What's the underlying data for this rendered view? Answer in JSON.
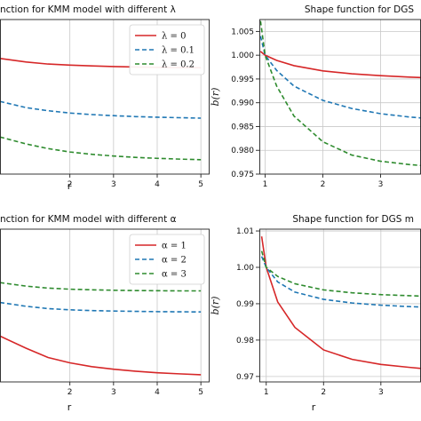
{
  "colors": {
    "red": "#d62728",
    "blue": "#1f77b4",
    "green": "#2e8b2e"
  },
  "chart_data": [
    {
      "type": "line",
      "title": "nction for KMM model with different λ",
      "xlabel": "r",
      "ylabel": "",
      "xlim": [
        0.4,
        5.2
      ],
      "ylim": [
        0,
        1
      ],
      "xticks": [
        2,
        3,
        4,
        5
      ],
      "yticks": [],
      "grid": true,
      "legend": "top-right",
      "series": [
        {
          "name": "λ = 0",
          "color": "red",
          "dash": "",
          "x": [
            0.4,
            1,
            1.5,
            2,
            2.5,
            3,
            3.5,
            4,
            4.5,
            5
          ],
          "y": [
            0.748,
            0.725,
            0.712,
            0.705,
            0.7,
            0.696,
            0.693,
            0.691,
            0.689,
            0.688
          ]
        },
        {
          "name": "λ = 0.1",
          "color": "blue",
          "dash": "5,3",
          "x": [
            0.4,
            1,
            1.5,
            2,
            2.5,
            3,
            3.5,
            4,
            4.5,
            5
          ],
          "y": [
            0.47,
            0.43,
            0.41,
            0.395,
            0.385,
            0.378,
            0.372,
            0.368,
            0.365,
            0.362
          ]
        },
        {
          "name": "λ = 0.2",
          "color": "green",
          "dash": "5,3",
          "x": [
            0.4,
            1,
            1.5,
            2,
            2.5,
            3,
            3.5,
            4,
            4.5,
            5
          ],
          "y": [
            0.24,
            0.195,
            0.165,
            0.143,
            0.128,
            0.117,
            0.108,
            0.102,
            0.097,
            0.093
          ]
        }
      ]
    },
    {
      "type": "line",
      "title": "Shape function for DGS",
      "xlabel": "",
      "ylabel": "b(r)",
      "xlim": [
        0.9,
        3.7
      ],
      "ylim": [
        0.975,
        1.0075
      ],
      "xticks": [
        1,
        2,
        3
      ],
      "yticks": [
        0.975,
        0.98,
        0.985,
        0.99,
        0.995,
        1.0,
        1.005
      ],
      "ytick_labels": [
        "0.975",
        "0.980",
        "0.985",
        "0.990",
        "0.995",
        "1.000",
        "1.005"
      ],
      "grid": true,
      "legend": "none",
      "series": [
        {
          "name": "",
          "color": "red",
          "dash": "",
          "x": [
            0.92,
            1,
            1.2,
            1.5,
            2,
            2.5,
            3,
            3.5,
            3.7
          ],
          "y": [
            1.0008,
            1.0,
            0.9989,
            0.9978,
            0.9967,
            0.9961,
            0.9957,
            0.9954,
            0.9953
          ]
        },
        {
          "name": "",
          "color": "blue",
          "dash": "5,3",
          "x": [
            0.92,
            1,
            1.2,
            1.5,
            2,
            2.5,
            3,
            3.5,
            3.7
          ],
          "y": [
            1.004,
            1.0,
            0.9968,
            0.9935,
            0.9905,
            0.9888,
            0.9877,
            0.987,
            0.9868
          ]
        },
        {
          "name": "",
          "color": "green",
          "dash": "5,3",
          "x": [
            0.92,
            1,
            1.2,
            1.5,
            2,
            2.5,
            3,
            3.5,
            3.7
          ],
          "y": [
            1.0072,
            1.0,
            0.9935,
            0.9872,
            0.9818,
            0.979,
            0.9777,
            0.977,
            0.9768
          ]
        }
      ]
    },
    {
      "type": "line",
      "title": "nction for KMM model with different α",
      "xlabel": "r",
      "ylabel": "",
      "xlim": [
        0.4,
        5.2
      ],
      "ylim": [
        0,
        1
      ],
      "xticks": [
        2,
        3,
        4,
        5
      ],
      "yticks": [],
      "grid": true,
      "legend": "top-right",
      "series": [
        {
          "name": "α = 1",
          "color": "red",
          "dash": "",
          "x": [
            0.4,
            1,
            1.5,
            2,
            2.5,
            3,
            3.5,
            4,
            4.5,
            5
          ],
          "y": [
            0.3,
            0.22,
            0.16,
            0.125,
            0.1,
            0.083,
            0.07,
            0.06,
            0.053,
            0.047
          ]
        },
        {
          "name": "α = 2",
          "color": "blue",
          "dash": "5,3",
          "x": [
            0.4,
            1,
            1.5,
            2,
            2.5,
            3,
            3.5,
            4,
            4.5,
            5
          ],
          "y": [
            0.52,
            0.495,
            0.48,
            0.472,
            0.467,
            0.464,
            0.462,
            0.46,
            0.459,
            0.458
          ]
        },
        {
          "name": "α = 3",
          "color": "green",
          "dash": "5,3",
          "x": [
            0.4,
            1,
            1.5,
            2,
            2.5,
            3,
            3.5,
            4,
            4.5,
            5
          ],
          "y": [
            0.65,
            0.627,
            0.614,
            0.607,
            0.603,
            0.6,
            0.598,
            0.597,
            0.596,
            0.596
          ]
        }
      ]
    },
    {
      "type": "line",
      "title": "Shape function for DGS m",
      "xlabel": "r",
      "ylabel": "b(r)",
      "xlim": [
        0.88,
        3.7
      ],
      "ylim": [
        0.9685,
        1.0105
      ],
      "xticks": [
        1,
        2,
        3
      ],
      "yticks": [
        0.97,
        0.98,
        0.99,
        1.0,
        1.01
      ],
      "ytick_labels": [
        "0.97",
        "0.98",
        "0.99",
        "1.00",
        "1.01"
      ],
      "grid": true,
      "legend": "none",
      "series": [
        {
          "name": "",
          "color": "red",
          "dash": "",
          "x": [
            0.92,
            1,
            1.2,
            1.5,
            2,
            2.5,
            3,
            3.5,
            3.7
          ],
          "y": [
            1.0085,
            1.0,
            0.9905,
            0.9835,
            0.9773,
            0.9747,
            0.9733,
            0.9725,
            0.9722
          ]
        },
        {
          "name": "",
          "color": "blue",
          "dash": "5,3",
          "x": [
            0.92,
            1,
            1.2,
            1.5,
            2,
            2.5,
            3,
            3.5,
            3.7
          ],
          "y": [
            1.003,
            1.0,
            0.996,
            0.9932,
            0.9912,
            0.9902,
            0.9896,
            0.9892,
            0.9891
          ]
        },
        {
          "name": "",
          "color": "green",
          "dash": "5,3",
          "x": [
            0.92,
            1,
            1.2,
            1.5,
            2,
            2.5,
            3,
            3.5,
            3.7
          ],
          "y": [
            1.0045,
            1.0,
            0.9975,
            0.9955,
            0.9938,
            0.993,
            0.9925,
            0.9922,
            0.9921
          ]
        }
      ]
    }
  ]
}
